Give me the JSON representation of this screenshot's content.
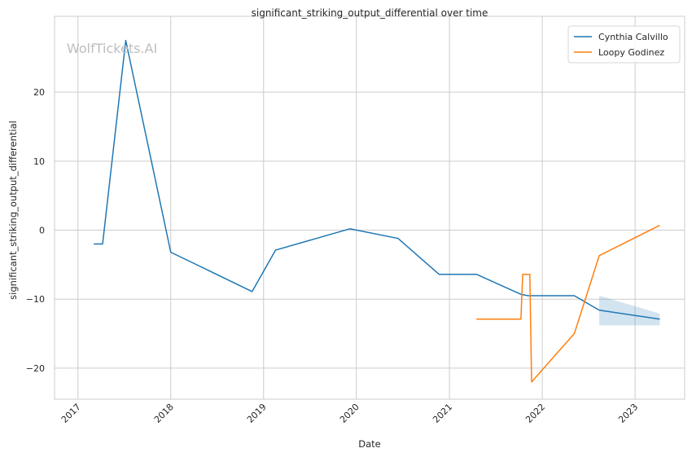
{
  "chart_data": {
    "type": "line",
    "title": "significant_striking_output_differential over time",
    "xlabel": "Date",
    "ylabel": "significant_striking_output_differential",
    "watermark": "WolfTickets.AI",
    "xlim": [
      "2016-10-01",
      "2023-07-15"
    ],
    "ylim": [
      -24.5,
      31
    ],
    "x_ticks": [
      "2017-01-01",
      "2018-01-01",
      "2019-01-01",
      "2020-01-01",
      "2021-01-01",
      "2022-01-01",
      "2023-01-01"
    ],
    "x_tick_labels": [
      "2017",
      "2018",
      "2019",
      "2020",
      "2021",
      "2022",
      "2023"
    ],
    "y_ticks": [
      -20,
      -10,
      0,
      10,
      20
    ],
    "y_tick_labels": [
      "−20",
      "−10",
      "0",
      "10",
      "20"
    ],
    "grid": true,
    "legend_position": "top-right",
    "series": [
      {
        "name": "Cynthia Calvillo",
        "color": "#1f77b4",
        "points": [
          [
            "2017-03-04",
            -2.0
          ],
          [
            "2017-04-08",
            -2.0
          ],
          [
            "2017-07-08",
            27.5
          ],
          [
            "2018-01-01",
            -3.2
          ],
          [
            "2018-11-17",
            -8.9
          ],
          [
            "2019-02-17",
            -2.9
          ],
          [
            "2019-12-07",
            0.2
          ],
          [
            "2020-06-13",
            -1.2
          ],
          [
            "2020-11-21",
            -6.4
          ],
          [
            "2021-04-17",
            -6.4
          ],
          [
            "2021-10-09",
            -9.3
          ],
          [
            "2021-11-06",
            -9.5
          ],
          [
            "2022-05-07",
            -9.5
          ],
          [
            "2022-08-13",
            -11.6
          ],
          [
            "2023-04-08",
            -12.9
          ]
        ],
        "band": [
          [
            "2022-08-13",
            -13.8,
            -9.5
          ],
          [
            "2023-04-08",
            -13.8,
            -12.1
          ]
        ]
      },
      {
        "name": "Loopy Godinez",
        "color": "#ff7f0e",
        "points": [
          [
            "2021-04-17",
            -12.9
          ],
          [
            "2021-10-09",
            -12.9
          ],
          [
            "2021-10-16",
            -6.4
          ],
          [
            "2021-11-13",
            -6.4
          ],
          [
            "2021-11-20",
            -22.0
          ],
          [
            "2022-05-07",
            -15.0
          ],
          [
            "2022-08-13",
            -3.7
          ],
          [
            "2023-04-08",
            0.7
          ]
        ]
      }
    ]
  }
}
